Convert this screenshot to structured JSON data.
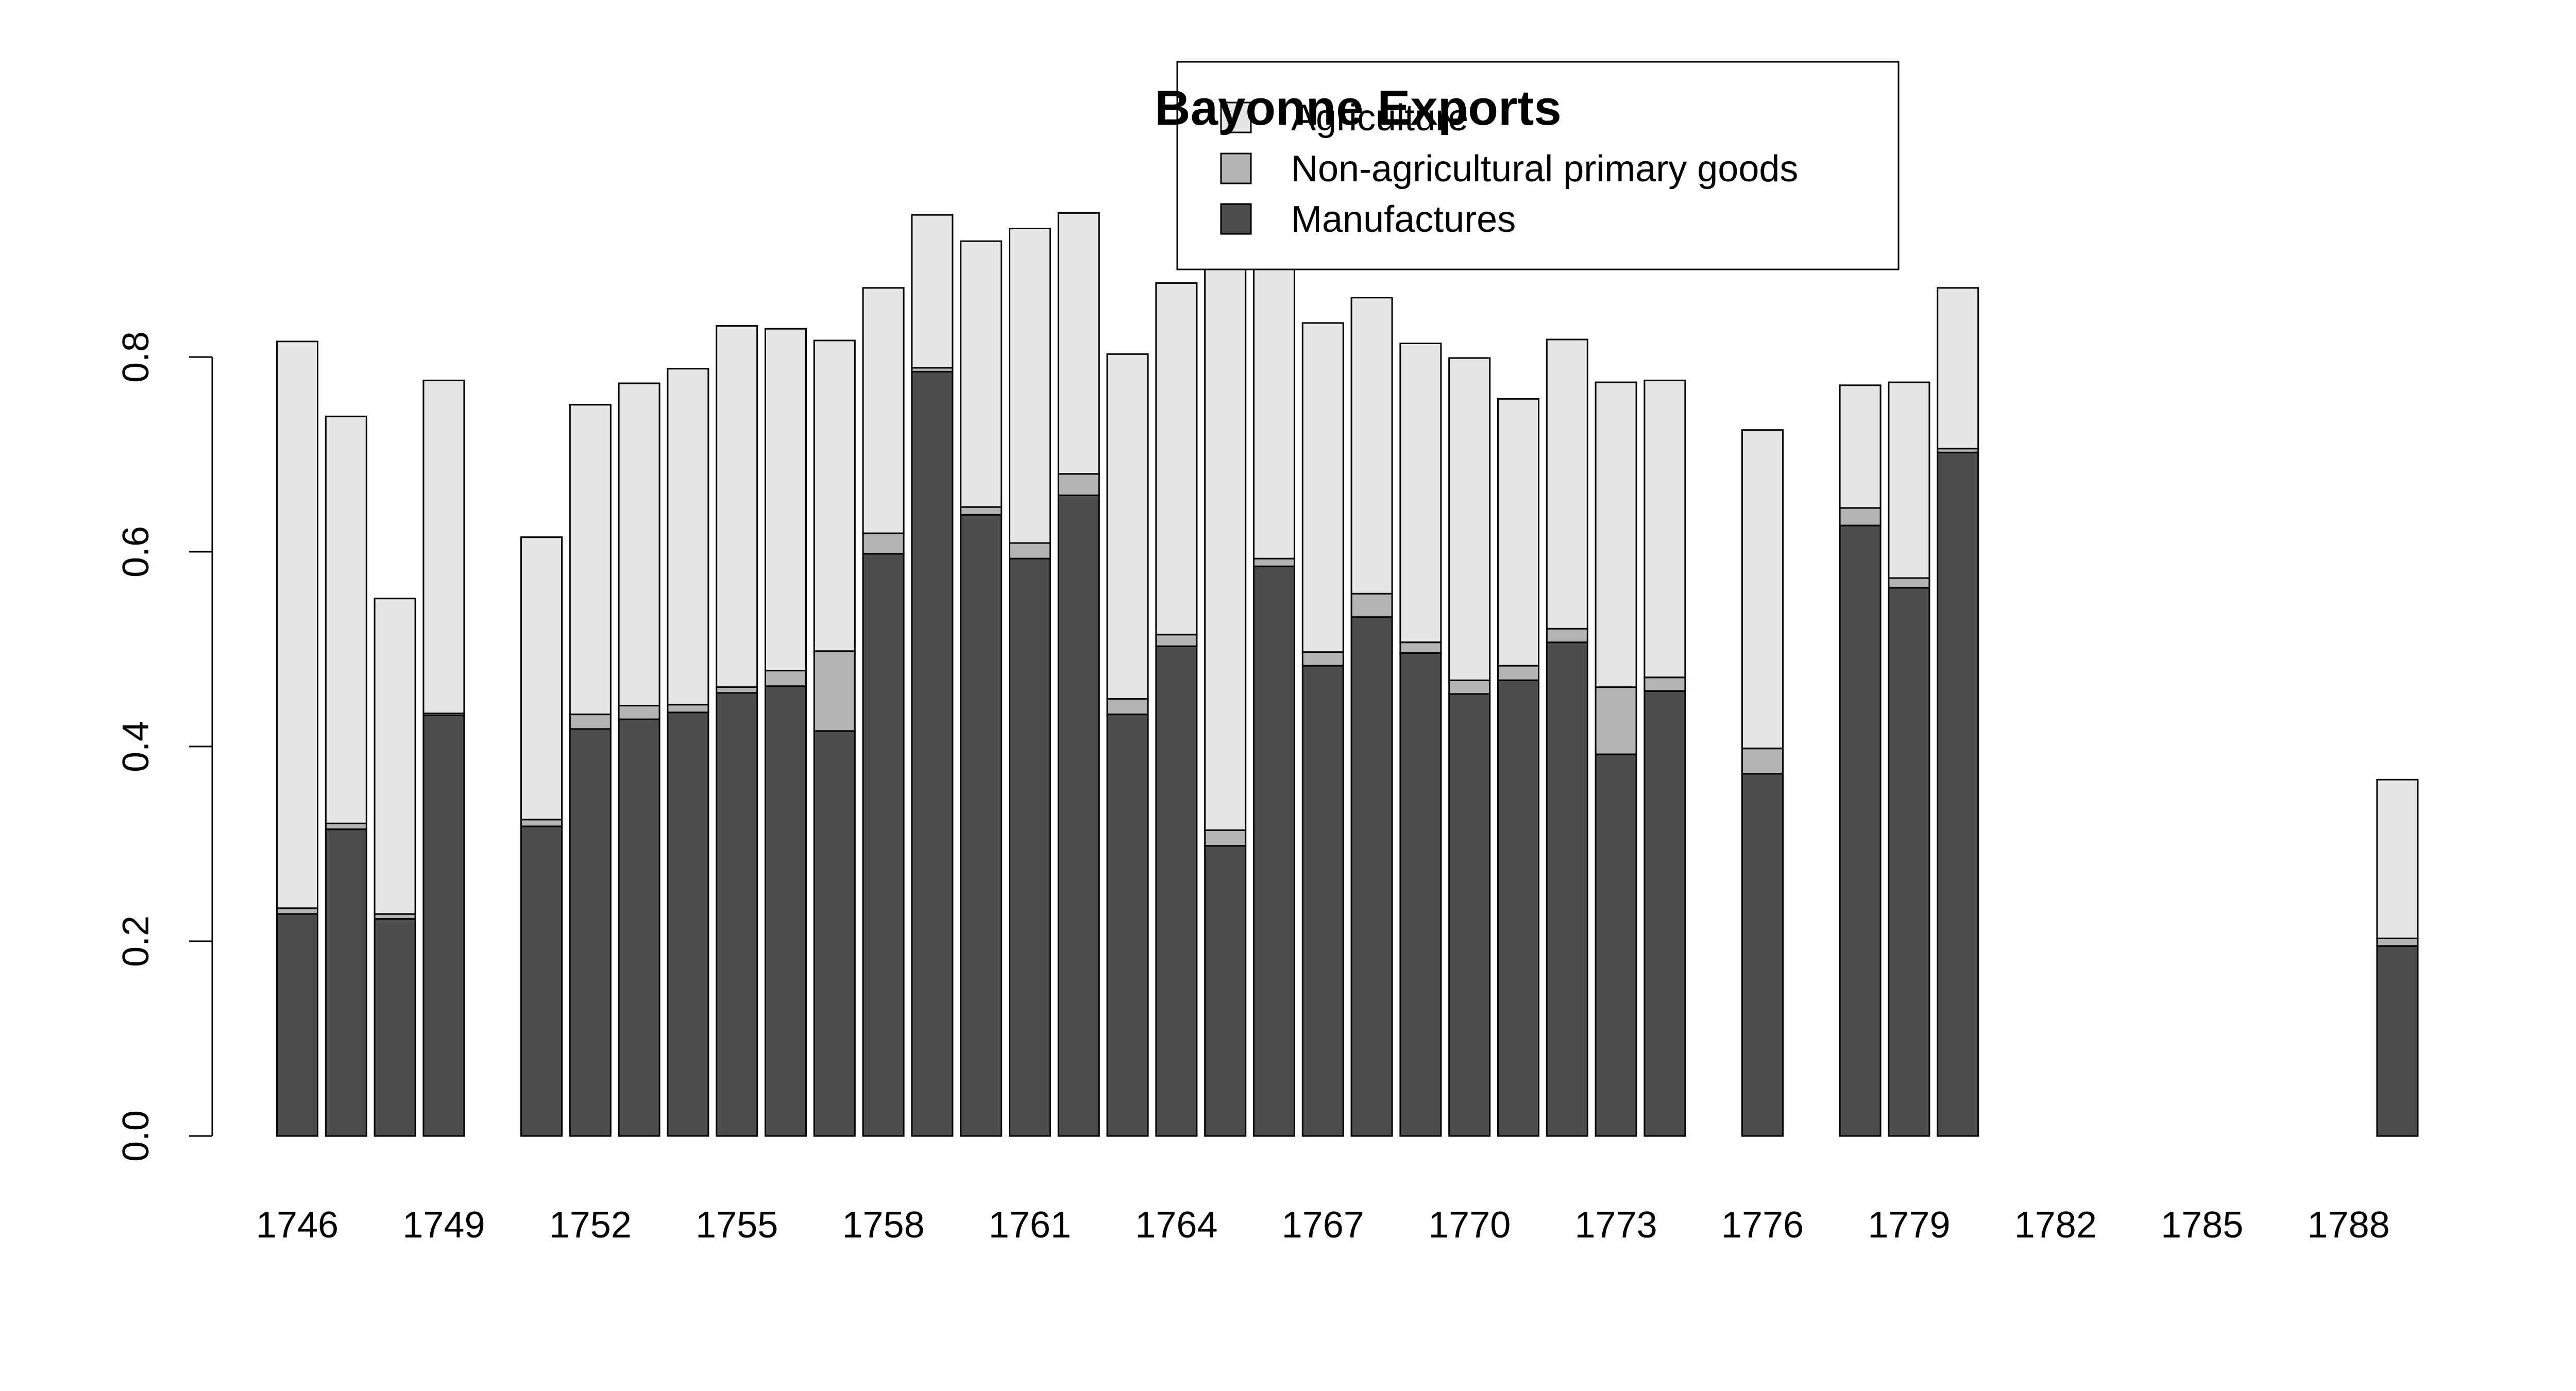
{
  "chart_data": {
    "type": "bar",
    "stacked": true,
    "title": "Bayonne Exports",
    "xlabel": "",
    "ylabel": "",
    "ylim": [
      0,
      0.95
    ],
    "yticks": [
      "0.0",
      "0.2",
      "0.4",
      "0.6",
      "0.8"
    ],
    "ytick_values": [
      0,
      0.2,
      0.4,
      0.6,
      0.8
    ],
    "grid": false,
    "legend_position": "top-center",
    "x_tick_labels": [
      "1746",
      "1749",
      "1752",
      "1755",
      "1758",
      "1761",
      "1764",
      "1767",
      "1770",
      "1773",
      "1776",
      "1779",
      "1782",
      "1785",
      "1788"
    ],
    "categories": [
      1746,
      1747,
      1748,
      1749,
      1750,
      1751,
      1752,
      1753,
      1754,
      1755,
      1756,
      1757,
      1758,
      1759,
      1760,
      1761,
      1762,
      1763,
      1764,
      1765,
      1766,
      1767,
      1768,
      1769,
      1770,
      1771,
      1772,
      1773,
      1774,
      1775,
      1776,
      1777,
      1778,
      1779,
      1780,
      1781,
      1782,
      1783,
      1784,
      1785,
      1786,
      1787,
      1788,
      1789
    ],
    "series": [
      {
        "name": "Manufactures",
        "color": "#4d4d4d",
        "values": [
          0.228,
          0.315,
          0.223,
          0.432,
          null,
          0.318,
          0.418,
          0.428,
          0.435,
          0.455,
          0.462,
          0.416,
          0.598,
          0.785,
          0.638,
          0.593,
          0.658,
          0.433,
          0.503,
          0.298,
          0.585,
          0.483,
          0.533,
          0.496,
          0.454,
          0.468,
          0.507,
          0.392,
          0.457,
          null,
          0.372,
          null,
          0.627,
          0.563,
          0.702,
          null,
          null,
          null,
          null,
          null,
          null,
          null,
          null,
          0.195
        ]
      },
      {
        "name": "Non-agricultural primary goods",
        "color": "#b3b3b3",
        "values": [
          0.006,
          0.006,
          0.005,
          0.002,
          null,
          0.007,
          0.015,
          0.014,
          0.008,
          0.006,
          0.016,
          0.082,
          0.021,
          0.004,
          0.008,
          0.016,
          0.022,
          0.016,
          0.012,
          0.016,
          0.008,
          0.014,
          0.024,
          0.011,
          0.014,
          0.015,
          0.014,
          0.069,
          0.014,
          null,
          0.026,
          null,
          0.018,
          0.01,
          0.004,
          null,
          null,
          null,
          null,
          null,
          null,
          null,
          null,
          0.008
        ]
      },
      {
        "name": "Agriculture",
        "color": "#e6e6e6",
        "values": [
          0.582,
          0.418,
          0.324,
          0.342,
          null,
          0.29,
          0.318,
          0.331,
          0.345,
          0.371,
          0.351,
          0.319,
          0.252,
          0.157,
          0.273,
          0.323,
          0.268,
          0.354,
          0.361,
          0.646,
          0.358,
          0.338,
          0.304,
          0.307,
          0.331,
          0.274,
          0.297,
          0.313,
          0.305,
          null,
          0.327,
          null,
          0.126,
          0.201,
          0.165,
          null,
          null,
          null,
          null,
          null,
          null,
          null,
          null,
          0.163
        ]
      }
    ],
    "legend": {
      "entries": [
        {
          "label": "Agriculture",
          "color": "#e6e6e6"
        },
        {
          "label": "Non-agricultural primary goods",
          "color": "#b3b3b3"
        },
        {
          "label": "Manufactures",
          "color": "#4d4d4d"
        }
      ]
    }
  }
}
